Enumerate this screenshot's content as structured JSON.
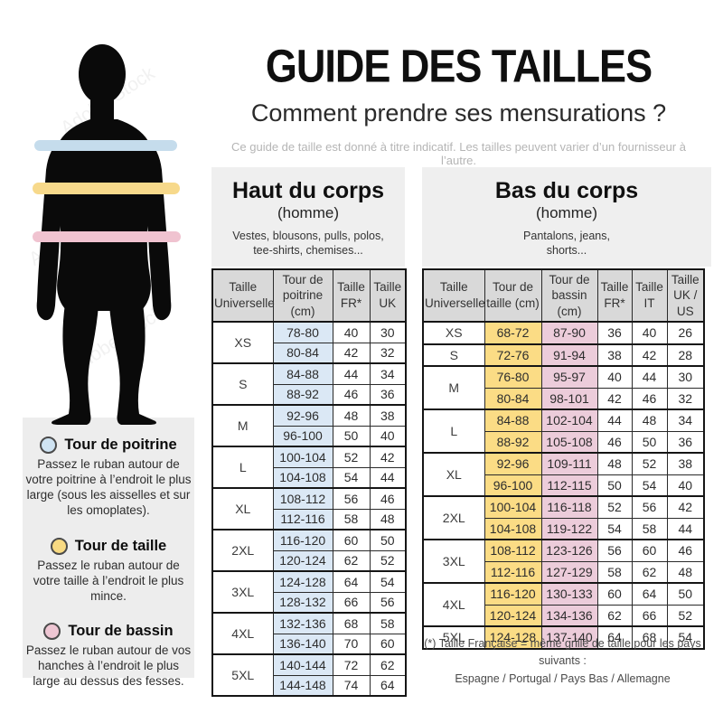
{
  "header": {
    "title": "GUIDE DES TAILLES",
    "subtitle": "Comment prendre ses mensurations ?",
    "note": "Ce guide de taille est donné à titre indicatif. Les tailles peuvent varier d’un fournisseur à l’autre."
  },
  "figure": {
    "watermark": "Adobe Stock",
    "bands": [
      {
        "name": "tour-de-poitrine",
        "color": "#c5dcec"
      },
      {
        "name": "tour-de-taille",
        "color": "#f7d98b"
      },
      {
        "name": "tour-de-bassin",
        "color": "#f0c3d0"
      }
    ]
  },
  "legend": {
    "items": [
      {
        "title": "Tour de poitrine",
        "color": "#cfe3f2",
        "description": "Passez le ruban autour de votre poitrine à l’endroit le plus large (sous les aisselles et sur les omoplates)."
      },
      {
        "title": "Tour de taille",
        "color": "#f8da82",
        "description": "Passez le ruban autour de votre taille à l’endroit le plus mince."
      },
      {
        "title": "Tour de bassin",
        "color": "#eec6d3",
        "description": "Passez le ruban autour de vos hanches à l’endroit le plus large au dessus des fesses."
      }
    ]
  },
  "tables": {
    "haut": {
      "title": "Haut du corps",
      "subtitle": "(homme)",
      "items": "Vestes, blousons, pulls, polos,\ntee-shirts, chemises...",
      "columns": [
        "Taille Universelle",
        "Tour de poitrine (cm)",
        "Taille FR*",
        "Taille UK"
      ],
      "cell_bg": [
        "#dbe8f5",
        null,
        null
      ],
      "groups": [
        {
          "size": "XS",
          "rows": [
            [
              "78-80",
              "40",
              "30"
            ],
            [
              "80-84",
              "42",
              "32"
            ]
          ]
        },
        {
          "size": "S",
          "rows": [
            [
              "84-88",
              "44",
              "34"
            ],
            [
              "88-92",
              "46",
              "36"
            ]
          ]
        },
        {
          "size": "M",
          "rows": [
            [
              "92-96",
              "48",
              "38"
            ],
            [
              "96-100",
              "50",
              "40"
            ]
          ]
        },
        {
          "size": "L",
          "rows": [
            [
              "100-104",
              "52",
              "42"
            ],
            [
              "104-108",
              "54",
              "44"
            ]
          ]
        },
        {
          "size": "XL",
          "rows": [
            [
              "108-112",
              "56",
              "46"
            ],
            [
              "112-116",
              "58",
              "48"
            ]
          ]
        },
        {
          "size": "2XL",
          "rows": [
            [
              "116-120",
              "60",
              "50"
            ],
            [
              "120-124",
              "62",
              "52"
            ]
          ]
        },
        {
          "size": "3XL",
          "rows": [
            [
              "124-128",
              "64",
              "54"
            ],
            [
              "128-132",
              "66",
              "56"
            ]
          ]
        },
        {
          "size": "4XL",
          "rows": [
            [
              "132-136",
              "68",
              "58"
            ],
            [
              "136-140",
              "70",
              "60"
            ]
          ]
        },
        {
          "size": "5XL",
          "rows": [
            [
              "140-144",
              "72",
              "62"
            ],
            [
              "144-148",
              "74",
              "64"
            ]
          ]
        }
      ]
    },
    "bas": {
      "title": "Bas du corps",
      "subtitle": "(homme)",
      "items": "Pantalons, jeans,\nshorts...",
      "columns": [
        "Taille Universelle",
        "Tour de taille (cm)",
        "Tour de bassin (cm)",
        "Taille FR*",
        "Taille IT",
        "Taille UK / US"
      ],
      "cell_bg": [
        "#fbdc85",
        "#ecccda",
        null,
        null,
        null
      ],
      "groups": [
        {
          "size": "XS",
          "rows": [
            [
              "68-72",
              "87-90",
              "36",
              "40",
              "26"
            ]
          ]
        },
        {
          "size": "S",
          "rows": [
            [
              "72-76",
              "91-94",
              "38",
              "42",
              "28"
            ]
          ]
        },
        {
          "size": "M",
          "rows": [
            [
              "76-80",
              "95-97",
              "40",
              "44",
              "30"
            ],
            [
              "80-84",
              "98-101",
              "42",
              "46",
              "32"
            ]
          ]
        },
        {
          "size": "L",
          "rows": [
            [
              "84-88",
              "102-104",
              "44",
              "48",
              "34"
            ],
            [
              "88-92",
              "105-108",
              "46",
              "50",
              "36"
            ]
          ]
        },
        {
          "size": "XL",
          "rows": [
            [
              "92-96",
              "109-111",
              "48",
              "52",
              "38"
            ],
            [
              "96-100",
              "112-115",
              "50",
              "54",
              "40"
            ]
          ]
        },
        {
          "size": "2XL",
          "rows": [
            [
              "100-104",
              "116-118",
              "52",
              "56",
              "42"
            ],
            [
              "104-108",
              "119-122",
              "54",
              "58",
              "44"
            ]
          ]
        },
        {
          "size": "3XL",
          "rows": [
            [
              "108-112",
              "123-126",
              "56",
              "60",
              "46"
            ],
            [
              "112-116",
              "127-129",
              "58",
              "62",
              "48"
            ]
          ]
        },
        {
          "size": "4XL",
          "rows": [
            [
              "116-120",
              "130-133",
              "60",
              "64",
              "50"
            ],
            [
              "120-124",
              "134-136",
              "62",
              "66",
              "52"
            ]
          ]
        },
        {
          "size": "5XL",
          "rows": [
            [
              "124-128",
              "137-140",
              "64",
              "68",
              "54"
            ]
          ]
        }
      ]
    }
  },
  "footnote": "(*) Taille Française = même grille de taille pour les pays suivants :\nEspagne / Portugal / Pays Bas / Allemagne"
}
